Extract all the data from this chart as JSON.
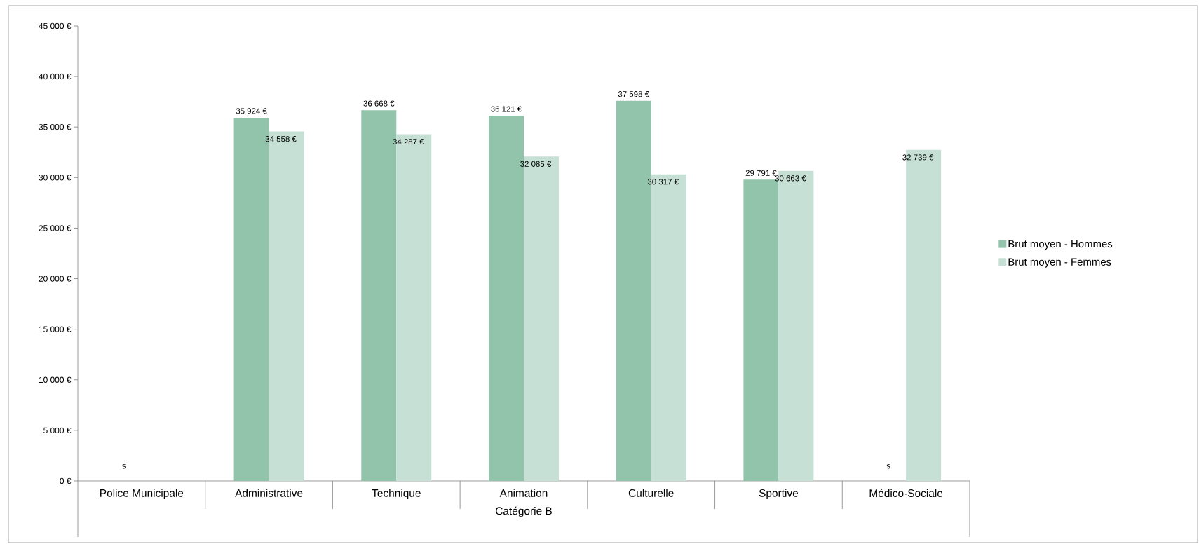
{
  "chart_data": {
    "type": "bar",
    "xlabel": "Catégorie B",
    "categories": [
      "Police Municipale",
      "Administrative",
      "Technique",
      "Animation",
      "Culturelle",
      "Sportive",
      "Médico-Sociale"
    ],
    "series": [
      {
        "name": "Brut moyen - Hommes",
        "color": "#92c3ab",
        "values": [
          null,
          35924,
          36668,
          36121,
          37598,
          29791,
          null
        ],
        "value_labels": [
          "s",
          "35 924 €",
          "36 668 €",
          "36 121 €",
          "37 598 €",
          "29 791 €",
          "s"
        ]
      },
      {
        "name": "Brut moyen - Femmes",
        "color": "#c6e0d5",
        "values": [
          null,
          34558,
          34287,
          32085,
          30317,
          30663,
          32739
        ],
        "value_labels": [
          null,
          "34 558 €",
          "34 287 €",
          "32 085 €",
          "30 317 €",
          "30 663 €",
          "32 739 €"
        ]
      }
    ],
    "ylim": [
      0,
      45000
    ],
    "yticks": [
      {
        "value": 0,
        "label": "0 €"
      },
      {
        "value": 5000,
        "label": "5 000 €"
      },
      {
        "value": 10000,
        "label": "10 000 €"
      },
      {
        "value": 15000,
        "label": "15 000 €"
      },
      {
        "value": 20000,
        "label": "20 000 €"
      },
      {
        "value": 25000,
        "label": "25 000 €"
      },
      {
        "value": 30000,
        "label": "30 000 €"
      },
      {
        "value": 35000,
        "label": "35 000 €"
      },
      {
        "value": 40000,
        "label": "40 000 €"
      },
      {
        "value": 45000,
        "label": "45 000 €"
      }
    ],
    "legend": "right"
  }
}
